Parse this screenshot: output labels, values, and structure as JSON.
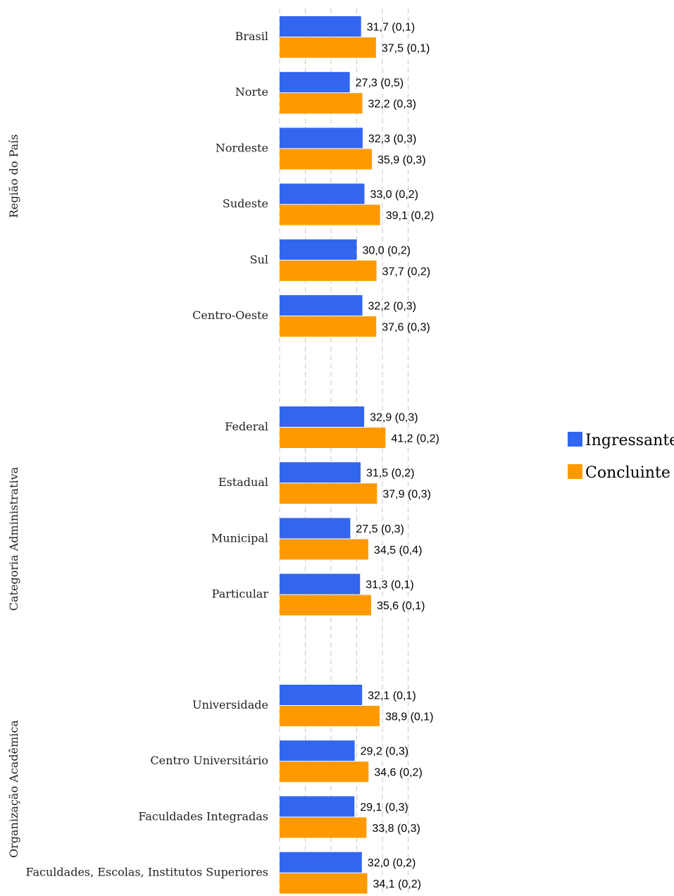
{
  "chart_data": {
    "type": "bar",
    "orientation": "horizontal",
    "xlim": [
      0,
      50
    ],
    "grid": true,
    "legend": "right",
    "colors": {
      "Ingressante": "#3366ee",
      "Concluinte": "#ff9900"
    },
    "groups": [
      {
        "label": "Região do País",
        "categories": [
          "Brasil",
          "Norte",
          "Nordeste",
          "Sudeste",
          "Sul",
          "Centro-Oeste"
        ],
        "series": [
          {
            "name": "Ingressante",
            "values": [
              31.7,
              27.3,
              32.3,
              33.0,
              30.0,
              32.2
            ],
            "labels": [
              "31,7  (0,1)",
              "27,3  (0,5)",
              "32,3  (0,3)",
              "33,0  (0,2)",
              "30,0  (0,2)",
              "32,2  (0,3)"
            ]
          },
          {
            "name": "Concluinte",
            "values": [
              37.5,
              32.2,
              35.9,
              39.1,
              37.7,
              37.6
            ],
            "labels": [
              "37,5  (0,1)",
              "32,2  (0,3)",
              "35,9  (0,3)",
              "39,1  (0,2)",
              "37,7  (0,2)",
              "37,6  (0,3)"
            ]
          }
        ]
      },
      {
        "label": "Categoria Administrativa",
        "categories": [
          "Federal",
          "Estadual",
          "Municipal",
          "Particular"
        ],
        "series": [
          {
            "name": "Ingressante",
            "values": [
              32.9,
              31.5,
              27.5,
              31.3
            ],
            "labels": [
              "32,9  (0,3)",
              "31,5  (0,2)",
              "27,5  (0,3)",
              "31,3  (0,1)"
            ]
          },
          {
            "name": "Concluinte",
            "values": [
              41.2,
              37.9,
              34.5,
              35.6
            ],
            "labels": [
              "41,2  (0,2)",
              "37,9  (0,3)",
              "34,5  (0,4)",
              "35,6  (0,1)"
            ]
          }
        ]
      },
      {
        "label": "Organização Acadêmica",
        "categories": [
          "Universidade",
          "Centro Universitário",
          "Faculdades Integradas",
          "Faculdades, Escolas, Institutos Superiores"
        ],
        "series": [
          {
            "name": "Ingressante",
            "values": [
              32.1,
              29.2,
              29.1,
              32.0
            ],
            "labels": [
              "32,1  (0,1)",
              "29,2  (0,3)",
              "29,1  (0,3)",
              "32,0  (0,2)"
            ]
          },
          {
            "name": "Concluinte",
            "values": [
              38.9,
              34.6,
              33.8,
              34.1
            ],
            "labels": [
              "38,9  (0,1)",
              "34,6  (0,2)",
              "33,8  (0,3)",
              "34,1  (0,2)"
            ]
          }
        ]
      }
    ]
  },
  "legend": {
    "ingressante": "Ingressante",
    "concluinte": "Concluinte"
  }
}
